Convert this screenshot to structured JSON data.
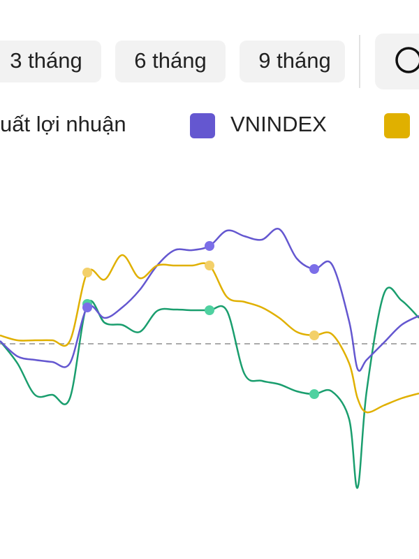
{
  "buttons": [
    "3 tháng",
    "6 tháng",
    "9 tháng"
  ],
  "chart_data": {
    "type": "line",
    "legend": [
      "uất lợi nhuận",
      "VNINDEX"
    ],
    "x": [
      0,
      25,
      50,
      75,
      100,
      125,
      150,
      175,
      200,
      225,
      250,
      275,
      300,
      325,
      350,
      375,
      400,
      425,
      450,
      475,
      500,
      512,
      525,
      550,
      575,
      600
    ],
    "xlim": [
      0,
      600
    ],
    "ylim": [
      -22,
      22
    ],
    "zero_line": 0,
    "markers": [
      5,
      12,
      18
    ],
    "series": [
      {
        "name": "uất lợi nhuận",
        "color": "#1a9e6e",
        "marker_color": "#4fd1a0",
        "values": [
          0.4,
          -2.8,
          -7.3,
          -7.3,
          -7.8,
          5.7,
          3.0,
          2.7,
          1.7,
          4.7,
          4.9,
          4.8,
          4.8,
          4.7,
          -4.3,
          -5.3,
          -5.8,
          -6.8,
          -7.2,
          -6.8,
          -10.8,
          -20.6,
          -6.8,
          7.2,
          6.2,
          3.7
        ]
      },
      {
        "name": "VNINDEX",
        "color": "#6457d0",
        "marker_color": "#7b6ee8",
        "values": [
          0.4,
          -1.8,
          -2.3,
          -2.6,
          -2.8,
          5.2,
          3.7,
          5.2,
          7.7,
          11.2,
          13.4,
          13.4,
          14.0,
          16.2,
          15.4,
          14.9,
          16.4,
          12.2,
          10.7,
          11.4,
          3.2,
          -3.6,
          -2.3,
          0.2,
          2.7,
          4.0
        ]
      },
      {
        "color": "#e0b000",
        "marker_color": "#f3d06a",
        "values": [
          1.2,
          0.5,
          0.5,
          0.5,
          0.4,
          10.2,
          9.2,
          12.7,
          9.4,
          11.2,
          11.2,
          11.2,
          11.2,
          6.7,
          6.0,
          5.2,
          3.7,
          1.7,
          1.2,
          1.4,
          -2.8,
          -7.8,
          -9.8,
          -8.8,
          -7.8,
          -7.1
        ]
      }
    ]
  }
}
